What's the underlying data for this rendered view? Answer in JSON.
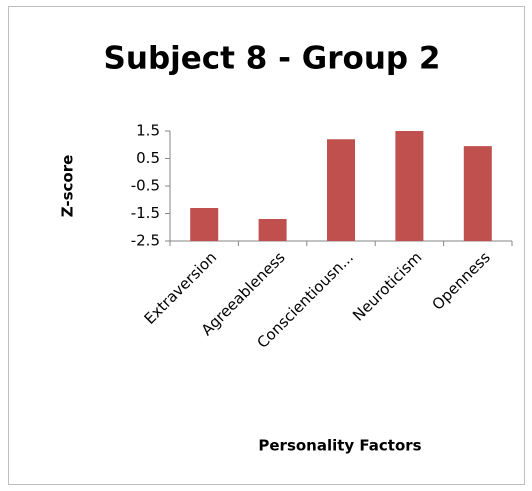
{
  "chart_data": {
    "type": "bar",
    "title": "Subject 8 - Group 2",
    "x_label": "Personality Factors",
    "y_label": "Z-score",
    "categories": [
      "Extraversion",
      "Agreeableness",
      "Conscientiousn...",
      "Neuroticism",
      "Openness"
    ],
    "values": [
      -1.3,
      -1.7,
      1.2,
      1.5,
      0.95
    ],
    "color": "#c0504d",
    "ylim": [
      -2.5,
      1.5
    ],
    "yticks": [
      -2.5,
      -1.5,
      -0.5,
      0.5,
      1.5
    ],
    "grid": false
  }
}
